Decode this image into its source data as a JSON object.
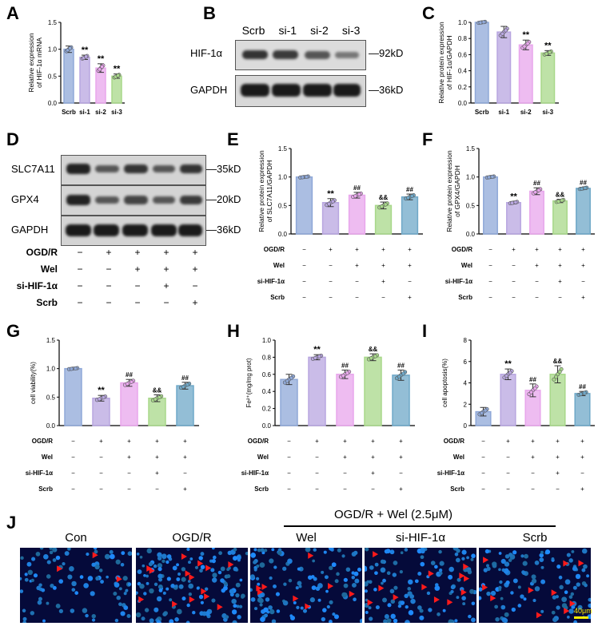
{
  "panel_letters": [
    "A",
    "B",
    "C",
    "D",
    "E",
    "F",
    "G",
    "H",
    "I",
    "J"
  ],
  "chart_data": [
    {
      "panel": "A",
      "type": "bar",
      "ylabel": "Relative expression of HIF-1α mRNA",
      "categories": [
        "Scrb",
        "si-1",
        "si-2",
        "si-3"
      ],
      "values": [
        1.0,
        0.85,
        0.65,
        0.5
      ],
      "errors": [
        0.06,
        0.04,
        0.08,
        0.04
      ],
      "sig": [
        "",
        "**",
        "**",
        "**"
      ],
      "yticks": [
        "0.0",
        "0.5",
        "1.0",
        "1.5"
      ],
      "ylim": [
        0,
        1.5
      ],
      "colors": [
        "#8fa8d8",
        "#b8a6e0",
        "#e8a6ec",
        "#a8d88a"
      ]
    },
    {
      "panel": "C",
      "type": "bar",
      "ylabel": "Relative protein expression of HIF-1α/GAPDH",
      "categories": [
        "Scrb",
        "si-1",
        "si-2",
        "si-3"
      ],
      "values": [
        1.0,
        0.88,
        0.72,
        0.62
      ],
      "errors": [
        0.0,
        0.07,
        0.06,
        0.03
      ],
      "sig": [
        "",
        "",
        "**",
        "**"
      ],
      "yticks": [
        "0.0",
        "0.2",
        "0.4",
        "0.6",
        "0.8",
        "1.0"
      ],
      "ylim": [
        0,
        1.0
      ],
      "colors": [
        "#8fa8d8",
        "#b8a6e0",
        "#e8a6ec",
        "#a8d88a"
      ]
    },
    {
      "panel": "E",
      "type": "bar",
      "ylabel": "Relative protein expression of SLC7A11/GAPDH",
      "values": [
        1.0,
        0.55,
        0.68,
        0.5,
        0.65
      ],
      "errors": [
        0.0,
        0.07,
        0.05,
        0.06,
        0.05
      ],
      "sig": [
        "",
        "**",
        "##",
        "&&",
        "##"
      ],
      "yticks": [
        "0.0",
        "0.5",
        "1.0",
        "1.5"
      ],
      "ylim": [
        0,
        1.5
      ],
      "colors": [
        "#8fa8d8",
        "#b8a6e0",
        "#e8a6ec",
        "#a8d88a",
        "#6fa8c8"
      ]
    },
    {
      "panel": "F",
      "type": "bar",
      "ylabel": "Relative protein expression of GPX4/GAPDH",
      "values": [
        1.0,
        0.55,
        0.75,
        0.58,
        0.8
      ],
      "errors": [
        0.0,
        0.02,
        0.06,
        0.03,
        0.02
      ],
      "sig": [
        "",
        "**",
        "##",
        "&&",
        "##"
      ],
      "yticks": [
        "0.0",
        "0.5",
        "1.0",
        "1.5"
      ],
      "ylim": [
        0,
        1.5
      ],
      "colors": [
        "#8fa8d8",
        "#b8a6e0",
        "#e8a6ec",
        "#a8d88a",
        "#6fa8c8"
      ]
    },
    {
      "panel": "G",
      "type": "bar",
      "ylabel": "cell viability(%)",
      "values": [
        1.0,
        0.48,
        0.75,
        0.48,
        0.7
      ],
      "errors": [
        0.0,
        0.05,
        0.06,
        0.06,
        0.06
      ],
      "sig": [
        "",
        "**",
        "##",
        "&&",
        "##"
      ],
      "yticks": [
        "0.0",
        "0.5",
        "1.0",
        "1.5"
      ],
      "ylim": [
        0,
        1.5
      ],
      "colors": [
        "#8fa8d8",
        "#b8a6e0",
        "#e8a6ec",
        "#a8d88a",
        "#6fa8c8"
      ]
    },
    {
      "panel": "H",
      "type": "bar",
      "ylabel": "Fe²⁺(mg/mg prot)",
      "values": [
        0.54,
        0.8,
        0.6,
        0.8,
        0.59
      ],
      "errors": [
        0.06,
        0.03,
        0.05,
        0.04,
        0.06
      ],
      "sig": [
        "",
        "**",
        "##",
        "&&",
        "##"
      ],
      "yticks": [
        "0.0",
        "0.2",
        "0.4",
        "0.6",
        "0.8",
        "1.0"
      ],
      "ylim": [
        0,
        1.0
      ],
      "colors": [
        "#8fa8d8",
        "#b8a6e0",
        "#e8a6ec",
        "#a8d88a",
        "#6fa8c8"
      ]
    },
    {
      "panel": "I",
      "type": "bar",
      "ylabel": "cell apoptosis(%)",
      "values": [
        1.3,
        4.8,
        3.3,
        4.8,
        3.0
      ],
      "errors": [
        0.4,
        0.5,
        0.6,
        0.8,
        0.2
      ],
      "sig": [
        "",
        "**",
        "##",
        "&&",
        "##"
      ],
      "yticks": [
        "0",
        "2",
        "4",
        "6",
        "8"
      ],
      "ylim": [
        0,
        8
      ],
      "colors": [
        "#8fa8d8",
        "#b8a6e0",
        "#e8a6ec",
        "#a8d88a",
        "#6fa8c8"
      ]
    }
  ],
  "treatment_table": {
    "rows": [
      {
        "label": "OGD/R",
        "marks": [
          "−",
          "+",
          "+",
          "+",
          "+"
        ]
      },
      {
        "label": "Wel",
        "marks": [
          "−",
          "−",
          "+",
          "+",
          "+"
        ]
      },
      {
        "label": "si-HIF-1α",
        "marks": [
          "−",
          "−",
          "−",
          "+",
          "−"
        ]
      },
      {
        "label": "Scrb",
        "marks": [
          "−",
          "−",
          "−",
          "−",
          "+"
        ]
      }
    ]
  },
  "blot_B": {
    "lanes": [
      "Scrb",
      "si-1",
      "si-2",
      "si-3"
    ],
    "rows": [
      {
        "name": "HIF-1α",
        "size": "—92kD"
      },
      {
        "name": "GAPDH",
        "size": "—36kD"
      }
    ]
  },
  "blot_D": {
    "rows": [
      {
        "name": "SLC7A11",
        "size": "—35kD"
      },
      {
        "name": "GPX4",
        "size": "—20kD"
      },
      {
        "name": "GAPDH",
        "size": "—36kD"
      }
    ]
  },
  "panel_J": {
    "group_header": "OGD/R + Wel (2.5μM)",
    "images": [
      "Con",
      "OGD/R",
      "Wel",
      "si-HIF-1α",
      "Scrb"
    ],
    "scale_bar": "40μm"
  }
}
